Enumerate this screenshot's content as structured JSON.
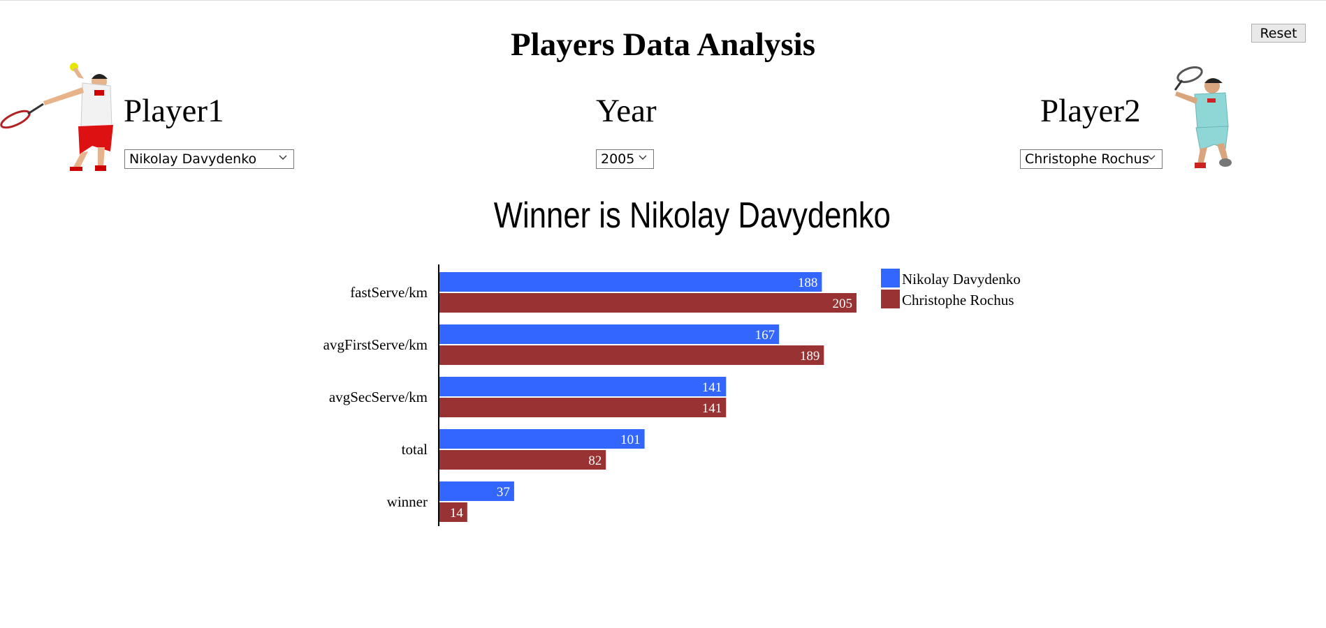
{
  "header": {
    "title": "Players Data Analysis",
    "reset_label": "Reset"
  },
  "controls": {
    "player1_label": "Player1",
    "player1_value": "Nikolay Davydenko",
    "year_label": "Year",
    "year_value": "2005",
    "player2_label": "Player2",
    "player2_value": "Christophe Rochus"
  },
  "result": {
    "winner_text": "Winner is Nikolay Davydenko"
  },
  "icons": {
    "player1_image": "tennis-player-serving-icon",
    "player2_image": "tennis-player-forehand-icon",
    "dropdown": "chevron-down-icon"
  },
  "colors": {
    "player1": "#3366ff",
    "player2": "#993333"
  },
  "chart_data": {
    "type": "bar",
    "orientation": "horizontal",
    "categories": [
      "fastServe/km",
      "avgFirstServe/km",
      "avgSecServe/km",
      "total",
      "winner"
    ],
    "series": [
      {
        "name": "Nikolay Davydenko",
        "values": [
          188,
          167,
          141,
          101,
          37
        ],
        "color": "#3366ff"
      },
      {
        "name": "Christophe Rochus",
        "values": [
          205,
          189,
          141,
          82,
          14
        ],
        "color": "#993333"
      }
    ],
    "data_labels": true,
    "legend_position": "top-right",
    "grid": false
  }
}
